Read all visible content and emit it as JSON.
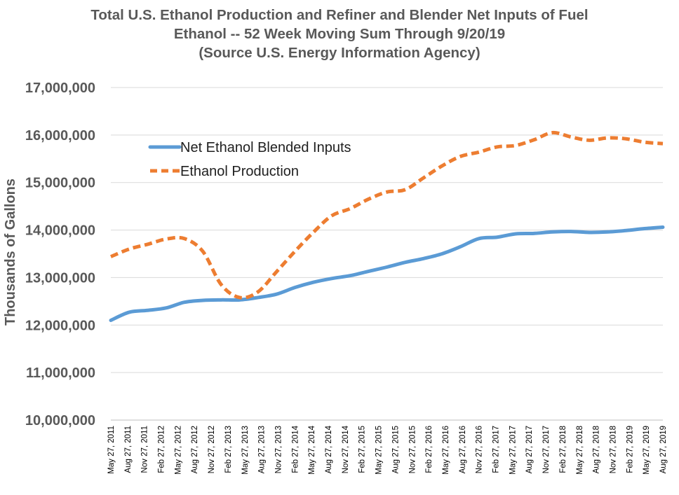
{
  "chart_data": {
    "type": "line",
    "title_lines": [
      "Total U.S. Ethanol Production and Refiner and Blender Net Inputs of Fuel",
      "Ethanol -- 52 Week Moving Sum Through 9/20/19",
      "(Source U.S. Energy Information Agency)"
    ],
    "ylabel": "Thousands of Gallons",
    "xlabel": "",
    "ylim": [
      10000000,
      17000000
    ],
    "y_ticks": [
      10000000,
      11000000,
      12000000,
      13000000,
      14000000,
      15000000,
      16000000,
      17000000
    ],
    "y_tick_labels": [
      "10,000,000",
      "11,000,000",
      "12,000,000",
      "13,000,000",
      "14,000,000",
      "15,000,000",
      "16,000,000",
      "17,000,000"
    ],
    "x_tick_labels": [
      "May 27, 2011",
      "Aug 27, 2011",
      "Nov 27, 2011",
      "Feb 27, 2012",
      "May 27, 2012",
      "Aug 27, 2012",
      "Nov 27, 2012",
      "Feb 27, 2013",
      "May 27, 2013",
      "Aug 27, 2013",
      "Nov 27, 2013",
      "Feb 27, 2014",
      "May 27, 2014",
      "Aug 27, 2014",
      "Nov 27, 2014",
      "Feb 27, 2015",
      "May 27, 2015",
      "Aug 27, 2015",
      "Nov 27, 2015",
      "Feb 27, 2016",
      "May 27, 2016",
      "Aug 27, 2016",
      "Nov 27, 2016",
      "Feb 27, 2017",
      "May 27, 2017",
      "Aug 27, 2017",
      "Nov 27, 2017",
      "Feb 27, 2018",
      "May 27, 2018",
      "Aug 27, 2018",
      "Nov 27, 2018",
      "Feb 27, 2019",
      "May 27, 2019",
      "Aug 27, 2019"
    ],
    "grid": true,
    "legend_position": "upper-left inside plot",
    "series": [
      {
        "name": "Net Ethanol Blended Inputs",
        "color": "#5b9bd5",
        "style": "solid",
        "values": [
          12100000,
          12270000,
          12310000,
          12360000,
          12480000,
          12520000,
          12530000,
          12530000,
          12580000,
          12650000,
          12790000,
          12900000,
          12980000,
          13040000,
          13130000,
          13220000,
          13320000,
          13400000,
          13500000,
          13650000,
          13820000,
          13850000,
          13920000,
          13930000,
          13960000,
          13970000,
          13950000,
          13960000,
          13990000,
          14030000,
          14060000
        ]
      },
      {
        "name": "Ethanol Production",
        "color": "#ed7d31",
        "style": "dashed",
        "values": [
          13440000,
          13600000,
          13700000,
          13810000,
          13820000,
          13550000,
          12850000,
          12580000,
          12700000,
          13120000,
          13550000,
          13950000,
          14300000,
          14450000,
          14650000,
          14800000,
          14850000,
          15100000,
          15350000,
          15550000,
          15640000,
          15750000,
          15780000,
          15900000,
          16050000,
          15960000,
          15890000,
          15940000,
          15920000,
          15850000,
          15820000
        ]
      }
    ]
  }
}
